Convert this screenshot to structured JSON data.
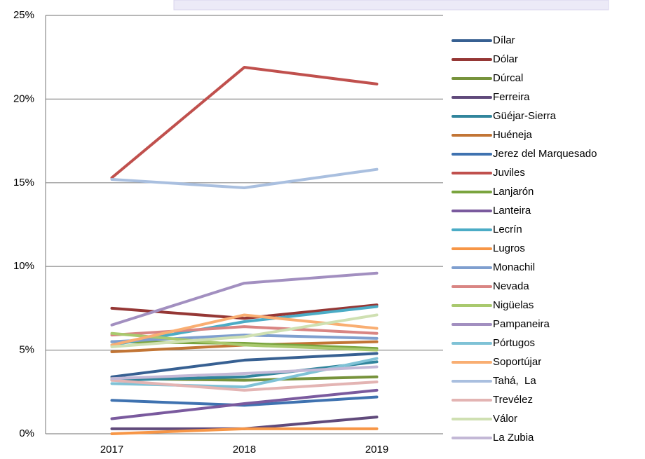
{
  "chart_data": {
    "type": "line",
    "categories": [
      "2017",
      "2018",
      "2019"
    ],
    "ylim": [
      0,
      25
    ],
    "yticks": [
      {
        "value": 0,
        "label": "0%"
      },
      {
        "value": 5,
        "label": "5%"
      },
      {
        "value": 10,
        "label": "10%"
      },
      {
        "value": 15,
        "label": "15%"
      },
      {
        "value": 20,
        "label": "20%"
      },
      {
        "value": 25,
        "label": "25%"
      }
    ],
    "grid": true,
    "legend": "right",
    "series": [
      {
        "name": "Dílar",
        "color": "#376092",
        "values": [
          3.4,
          4.4,
          4.8
        ]
      },
      {
        "name": "Dólar",
        "color": "#953735",
        "values": [
          7.5,
          6.9,
          7.7
        ]
      },
      {
        "name": "Dúrcal",
        "color": "#77933c",
        "values": [
          3.3,
          3.2,
          3.4
        ]
      },
      {
        "name": "Ferreira",
        "color": "#604a7b",
        "values": [
          0.3,
          0.3,
          1.0
        ]
      },
      {
        "name": "Güéjar-Sierra",
        "color": "#31859c",
        "values": [
          3.2,
          3.4,
          4.3
        ]
      },
      {
        "name": "Huéneja",
        "color": "#c27535",
        "values": [
          4.9,
          5.3,
          5.5
        ]
      },
      {
        "name": "Jerez del Marquesado",
        "color": "#3f72b0",
        "values": [
          2.0,
          1.7,
          2.2
        ]
      },
      {
        "name": "Juviles",
        "color": "#c0504d",
        "values": [
          15.3,
          21.9,
          20.9
        ]
      },
      {
        "name": "Lanjarón",
        "color": "#7aa43e",
        "values": [
          5.5,
          5.4,
          5.1
        ]
      },
      {
        "name": "Lanteira",
        "color": "#7a5a9e",
        "values": [
          0.9,
          1.8,
          2.6
        ]
      },
      {
        "name": "Lecrín",
        "color": "#4bacc6",
        "values": [
          5.3,
          6.7,
          7.6
        ]
      },
      {
        "name": "Lugros",
        "color": "#f79646",
        "values": [
          0.0,
          0.3,
          0.3
        ]
      },
      {
        "name": "Monachil",
        "color": "#7f9fcf",
        "values": [
          5.5,
          5.9,
          5.7
        ]
      },
      {
        "name": "Nevada",
        "color": "#d98583",
        "values": [
          5.9,
          6.4,
          6.0
        ]
      },
      {
        "name": "Nigüelas",
        "color": "#a9c96e",
        "values": [
          6.0,
          5.3,
          5.0
        ]
      },
      {
        "name": "Pampaneira",
        "color": "#a28fc0",
        "values": [
          6.5,
          9.0,
          9.6
        ]
      },
      {
        "name": "Pórtugos",
        "color": "#7fc2d6",
        "values": [
          3.0,
          2.8,
          4.5
        ]
      },
      {
        "name": "Soportújar",
        "color": "#f9ae72",
        "values": [
          5.3,
          7.1,
          6.3
        ]
      },
      {
        "name": "Tahá,  La",
        "color": "#a9bfdf",
        "values": [
          15.2,
          14.7,
          15.8
        ]
      },
      {
        "name": "Trevélez",
        "color": "#e3b4b3",
        "values": [
          3.2,
          2.6,
          3.1
        ]
      },
      {
        "name": "Válor",
        "color": "#cfe0b2",
        "values": [
          5.2,
          5.8,
          7.1
        ]
      },
      {
        "name": "La Zubia",
        "color": "#c3b8d6",
        "values": [
          3.3,
          3.6,
          4.0
        ]
      }
    ]
  }
}
